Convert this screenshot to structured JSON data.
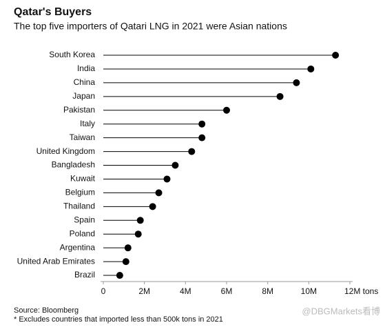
{
  "chart_data": {
    "type": "lollipop",
    "title": "Qatar's Buyers",
    "subtitle": "The top five importers of Qatari LNG in 2021 were Asian nations",
    "categories": [
      "South Korea",
      "India",
      "China",
      "Japan",
      "Pakistan",
      "Italy",
      "Taiwan",
      "United Kingdom",
      "Bangladesh",
      "Kuwait",
      "Belgium",
      "Thailand",
      "Spain",
      "Poland",
      "Argentina",
      "United Arab Emirates",
      "Brazil"
    ],
    "values": [
      11300000,
      10100000,
      9400000,
      8600000,
      6000000,
      4800000,
      4800000,
      4300000,
      3500000,
      3100000,
      2700000,
      2400000,
      1800000,
      1700000,
      1200000,
      1100000,
      800000
    ],
    "color": "#000000",
    "xlim": [
      0,
      12000000
    ],
    "xticks": [
      0,
      {
        "value": 2000000,
        "label": "2M"
      },
      {
        "value": 4000000,
        "label": "4M"
      },
      {
        "value": 6000000,
        "label": "6M"
      },
      {
        "value": 8000000,
        "label": "8M"
      },
      {
        "value": 10000000,
        "label": "10M"
      },
      {
        "value": 12000000,
        "label": "12M tons"
      }
    ],
    "source": "Source: Bloomberg",
    "note": "* Excludes countries that imported less than 500k tons in 2021",
    "watermark": "@DBGMarkets看博"
  }
}
